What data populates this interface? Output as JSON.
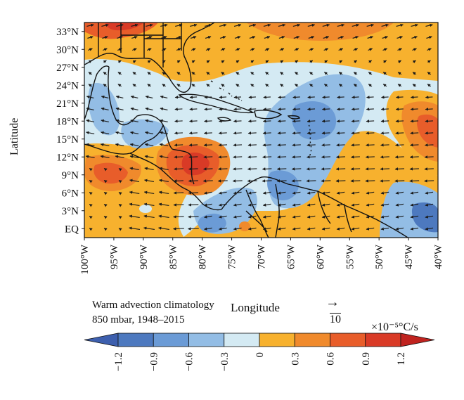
{
  "map": {
    "x_ticks": [
      "100°W",
      "95°W",
      "90°W",
      "85°W",
      "80°W",
      "75°W",
      "70°W",
      "65°W",
      "60°W",
      "55°W",
      "50°W",
      "45°W",
      "40°W"
    ],
    "y_ticks": [
      "EQ",
      "3°N",
      "6°N",
      "9°N",
      "12°N",
      "15°N",
      "18°N",
      "21°N",
      "24°N",
      "27°N",
      "30°N",
      "33°N"
    ],
    "xlabel": "Longitude",
    "ylabel": "Latitude",
    "lon_range": [
      -100,
      -40
    ],
    "lat_range": [
      -1.5,
      34.5
    ],
    "vector_reference": {
      "value": "10",
      "arrow": "→"
    },
    "vector_field": "easterly trade-wind flow (arrows point mostly westward)"
  },
  "caption": {
    "line1": "Warm advection climatology",
    "line2": "850 mbar, 1948–2015"
  },
  "colorbar": {
    "units": "×10⁻⁵°C/s",
    "tick_labels": [
      "−1.2",
      "−0.9",
      "−0.6",
      "−0.3",
      "0",
      "0.3",
      "0.6",
      "0.9",
      "1.2"
    ],
    "bins": [
      {
        "range": "< -1.2",
        "color": "#3d5fae"
      },
      {
        "range": "-1.2 to -0.9",
        "color": "#4d79bf"
      },
      {
        "range": "-0.9 to -0.6",
        "color": "#6b9bd6"
      },
      {
        "range": "-0.6 to -0.3",
        "color": "#93bde5"
      },
      {
        "range": "-0.3 to 0",
        "color": "#d4eaf3"
      },
      {
        "range": "0 to 0.3",
        "color": "#f7b12e"
      },
      {
        "range": "0.3 to 0.6",
        "color": "#f08a2c"
      },
      {
        "range": "0.6 to 0.9",
        "color": "#e85d2a"
      },
      {
        "range": "0.9 to 1.2",
        "color": "#d93a26"
      },
      {
        "range": "> 1.2",
        "color": "#c0231f"
      }
    ],
    "extend": "both"
  },
  "colors": {
    "frame": "#111111",
    "coast": "#111111",
    "arrow": "#1a1a1a"
  }
}
